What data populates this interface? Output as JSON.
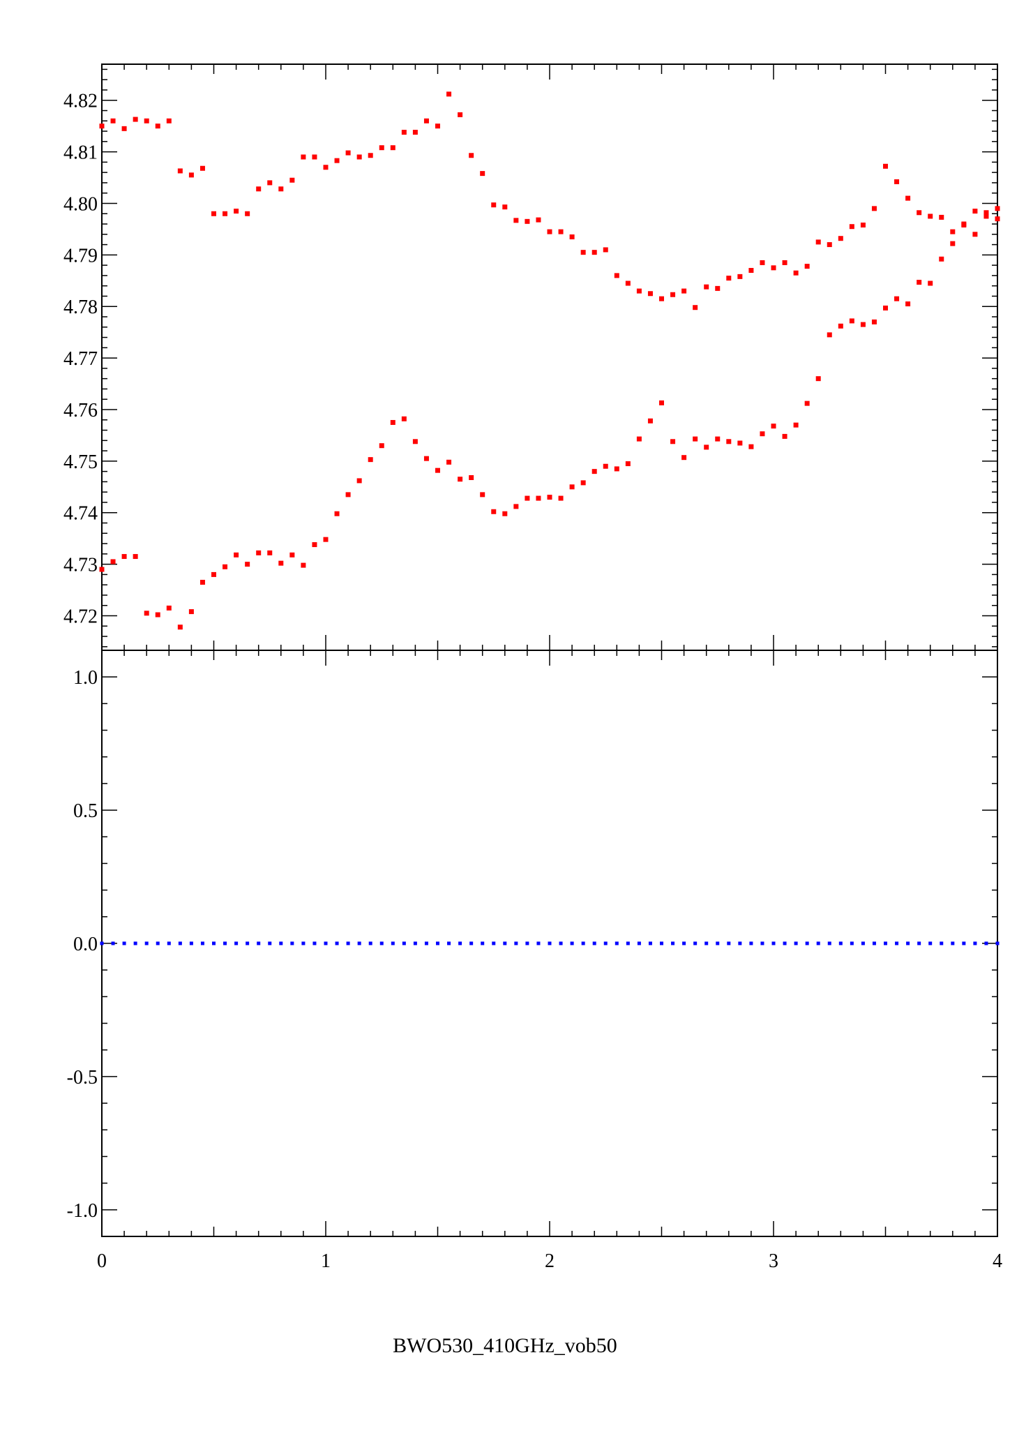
{
  "caption": "BWO530_410GHz_vob50",
  "colors": {
    "upper_points": "#ff0000",
    "lower_points": "#0000ff",
    "axes": "#000000"
  },
  "chart_data": [
    {
      "type": "scatter",
      "panel": "top",
      "xlim": [
        0,
        4
      ],
      "ylim": [
        4.7133,
        4.827
      ],
      "yticks": [
        4.72,
        4.73,
        4.74,
        4.75,
        4.76,
        4.77,
        4.78,
        4.79,
        4.8,
        4.81,
        4.82
      ],
      "ytick_labels": [
        "4.72",
        "4.73",
        "4.74",
        "4.75",
        "4.76",
        "4.77",
        "4.78",
        "4.79",
        "4.80",
        "4.81",
        "4.82"
      ],
      "grid": false,
      "series": [
        {
          "color": "#ff0000",
          "x": [
            0.0,
            0.05,
            0.1,
            0.15,
            0.2,
            0.25,
            0.3,
            0.35,
            0.4,
            0.45,
            0.5,
            0.55,
            0.6,
            0.65,
            0.7,
            0.75,
            0.8,
            0.85,
            0.9,
            0.95,
            1.0,
            1.05,
            1.1,
            1.15,
            1.2,
            1.25,
            1.3,
            1.35,
            1.4,
            1.45,
            1.5,
            1.55,
            1.6,
            1.65,
            1.7,
            1.75,
            1.8,
            1.85,
            1.9,
            1.95,
            2.0,
            2.05,
            2.1,
            2.15,
            2.2,
            2.25,
            2.3,
            2.35,
            2.4,
            2.45,
            2.5,
            2.55,
            2.6,
            2.65,
            2.7,
            2.75,
            2.8,
            2.85,
            2.9,
            2.95,
            3.0,
            3.05,
            3.1,
            3.15,
            3.2,
            3.25,
            3.3,
            3.35,
            3.4,
            3.45,
            3.5,
            3.55,
            3.6,
            3.65,
            3.7,
            3.75,
            3.8,
            3.85,
            3.9,
            3.95,
            4.0
          ],
          "y": [
            4.815,
            4.816,
            4.8145,
            4.8163,
            4.816,
            4.815,
            4.816,
            4.8063,
            4.8055,
            4.8068,
            4.798,
            4.798,
            4.7985,
            4.798,
            4.8028,
            4.804,
            4.8028,
            4.8045,
            4.809,
            4.809,
            4.807,
            4.8083,
            4.8098,
            4.809,
            4.8093,
            4.8108,
            4.8108,
            4.8138,
            4.8138,
            4.816,
            4.815,
            4.8212,
            4.8172,
            4.8093,
            4.8058,
            4.7997,
            4.7993,
            4.7967,
            4.7965,
            4.7968,
            4.7945,
            4.7945,
            4.7935,
            4.7905,
            4.7905,
            4.791,
            4.786,
            4.7845,
            4.783,
            4.7825,
            4.7815,
            4.7823,
            4.783,
            4.7798,
            4.7838,
            4.7835,
            4.7855,
            4.7858,
            4.787,
            4.7885,
            4.7875,
            4.7885,
            4.7865,
            4.7878,
            4.7925,
            4.792,
            4.7932,
            4.7955,
            4.7958,
            4.799,
            4.8072,
            4.8042,
            4.801,
            4.7982,
            4.7975,
            4.7973,
            4.7945,
            4.7958,
            4.794,
            4.7975,
            4.799
          ]
        },
        {
          "color": "#ff0000",
          "x": [
            0.0,
            0.05,
            0.1,
            0.15,
            0.2,
            0.25,
            0.3,
            0.35,
            0.4,
            0.45,
            0.5,
            0.55,
            0.6,
            0.65,
            0.7,
            0.75,
            0.8,
            0.85,
            0.9,
            0.95,
            1.0,
            1.05,
            1.1,
            1.15,
            1.2,
            1.25,
            1.3,
            1.35,
            1.4,
            1.45,
            1.5,
            1.55,
            1.6,
            1.65,
            1.7,
            1.75,
            1.8,
            1.85,
            1.9,
            1.95,
            2.0,
            2.05,
            2.1,
            2.15,
            2.2,
            2.25,
            2.3,
            2.35,
            2.4,
            2.45,
            2.5,
            2.55,
            2.6,
            2.65,
            2.7,
            2.75,
            2.8,
            2.85,
            2.9,
            2.95,
            3.0,
            3.05,
            3.1,
            3.15,
            3.2,
            3.25,
            3.3,
            3.35,
            3.4,
            3.45,
            3.5,
            3.55,
            3.6,
            3.65,
            3.7,
            3.75,
            3.8,
            3.85,
            3.9,
            3.95,
            4.0
          ],
          "y": [
            4.729,
            4.7305,
            4.7315,
            4.7315,
            4.7205,
            4.7202,
            4.7215,
            4.7178,
            4.7208,
            4.7265,
            4.728,
            4.7295,
            4.7318,
            4.73,
            4.7322,
            4.7322,
            4.7302,
            4.7318,
            4.7298,
            4.7338,
            4.7348,
            4.7398,
            4.7435,
            4.7462,
            4.7503,
            4.753,
            4.7575,
            4.7582,
            4.7538,
            4.7505,
            4.7482,
            4.7498,
            4.7465,
            4.7468,
            4.7435,
            4.7402,
            4.7398,
            4.7412,
            4.7428,
            4.7428,
            4.743,
            4.7428,
            4.745,
            4.7458,
            4.748,
            4.749,
            4.7485,
            4.7495,
            4.7543,
            4.7578,
            4.7613,
            4.7538,
            4.7507,
            4.7543,
            4.7527,
            4.7543,
            4.7538,
            4.7535,
            4.7528,
            4.7553,
            4.7568,
            4.7548,
            4.757,
            4.7612,
            4.766,
            4.7745,
            4.7762,
            4.7772,
            4.7765,
            4.777,
            4.7797,
            4.7815,
            4.7805,
            4.7847,
            4.7845,
            4.7892,
            4.7922,
            4.796,
            4.7985,
            4.7982,
            4.797
          ]
        }
      ]
    },
    {
      "type": "scatter",
      "panel": "bottom",
      "xlim": [
        0,
        4
      ],
      "ylim": [
        -1.1,
        1.1
      ],
      "xticks": [
        0,
        1,
        2,
        3,
        4
      ],
      "xtick_labels": [
        "0",
        "1",
        "2",
        "3",
        "4"
      ],
      "yticks": [
        1.0,
        0.5,
        0.0,
        -0.5,
        -1.0
      ],
      "ytick_labels": [
        "1.0",
        "0.5",
        "0.0",
        "-0.5",
        "-1.0"
      ],
      "grid": false,
      "series": [
        {
          "color": "#0000ff",
          "x": [
            0.0,
            0.05,
            0.1,
            0.15,
            0.2,
            0.25,
            0.3,
            0.35,
            0.4,
            0.45,
            0.5,
            0.55,
            0.6,
            0.65,
            0.7,
            0.75,
            0.8,
            0.85,
            0.9,
            0.95,
            1.0,
            1.05,
            1.1,
            1.15,
            1.2,
            1.25,
            1.3,
            1.35,
            1.4,
            1.45,
            1.5,
            1.55,
            1.6,
            1.65,
            1.7,
            1.75,
            1.8,
            1.85,
            1.9,
            1.95,
            2.0,
            2.05,
            2.1,
            2.15,
            2.2,
            2.25,
            2.3,
            2.35,
            2.4,
            2.45,
            2.5,
            2.55,
            2.6,
            2.65,
            2.7,
            2.75,
            2.8,
            2.85,
            2.9,
            2.95,
            3.0,
            3.05,
            3.1,
            3.15,
            3.2,
            3.25,
            3.3,
            3.35,
            3.4,
            3.45,
            3.5,
            3.55,
            3.6,
            3.65,
            3.7,
            3.75,
            3.8,
            3.85,
            3.9,
            3.95,
            4.0
          ],
          "y": [
            0,
            0,
            0,
            0,
            0,
            0,
            0,
            0,
            0,
            0,
            0,
            0,
            0,
            0,
            0,
            0,
            0,
            0,
            0,
            0,
            0,
            0,
            0,
            0,
            0,
            0,
            0,
            0,
            0,
            0,
            0,
            0,
            0,
            0,
            0,
            0,
            0,
            0,
            0,
            0,
            0,
            0,
            0,
            0,
            0,
            0,
            0,
            0,
            0,
            0,
            0,
            0,
            0,
            0,
            0,
            0,
            0,
            0,
            0,
            0,
            0,
            0,
            0,
            0,
            0,
            0,
            0,
            0,
            0,
            0,
            0,
            0,
            0,
            0,
            0,
            0,
            0,
            0,
            0,
            0,
            0
          ]
        }
      ]
    }
  ]
}
